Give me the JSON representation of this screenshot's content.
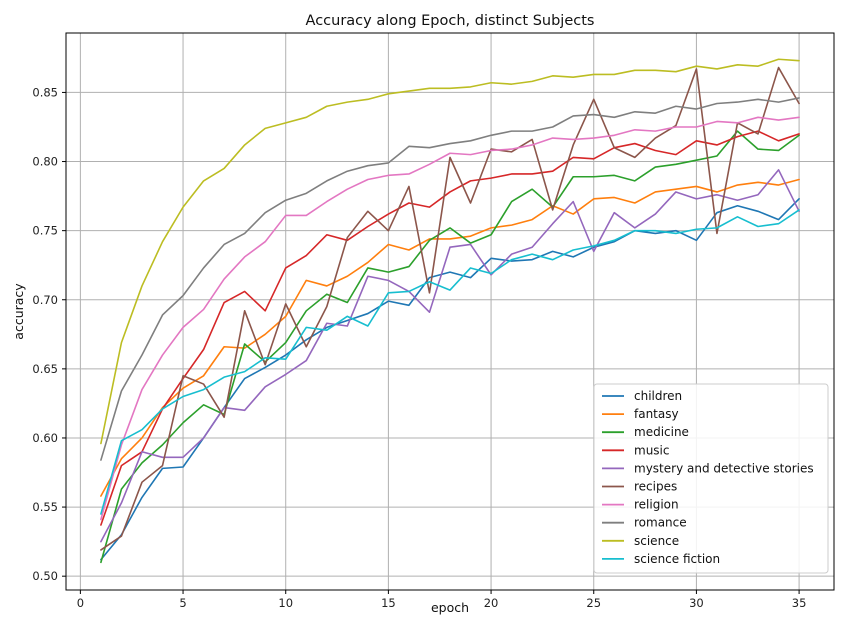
{
  "chart_data": {
    "type": "line",
    "title": "Accuracy along Epoch, distinct Subjects",
    "xlabel": "epoch",
    "ylabel": "accuracy",
    "xlim": [
      -0.7,
      36.7
    ],
    "ylim": [
      0.49,
      0.893
    ],
    "xticks": [
      0,
      5,
      10,
      15,
      20,
      25,
      30,
      35
    ],
    "yticks": [
      0.5,
      0.55,
      0.6,
      0.65,
      0.7,
      0.75,
      0.8,
      0.85
    ],
    "ytick_labels": [
      "0.50",
      "0.55",
      "0.60",
      "0.65",
      "0.70",
      "0.75",
      "0.80",
      "0.85"
    ],
    "grid": true,
    "legend_position": "lower-right",
    "x": [
      1,
      2,
      3,
      4,
      5,
      6,
      7,
      8,
      9,
      10,
      11,
      12,
      13,
      14,
      15,
      16,
      17,
      18,
      19,
      20,
      21,
      22,
      23,
      24,
      25,
      26,
      27,
      28,
      29,
      30,
      31,
      32,
      33,
      34,
      35
    ],
    "series": [
      {
        "name": "children",
        "color": "#1f77b4",
        "values": [
          0.512,
          0.53,
          0.557,
          0.578,
          0.579,
          0.6,
          0.622,
          0.643,
          0.651,
          0.66,
          0.671,
          0.68,
          0.685,
          0.69,
          0.699,
          0.696,
          0.716,
          0.72,
          0.716,
          0.73,
          0.728,
          0.729,
          0.735,
          0.731,
          0.738,
          0.742,
          0.75,
          0.748,
          0.75,
          0.743,
          0.763,
          0.768,
          0.764,
          0.758,
          0.773
        ]
      },
      {
        "name": "fantasy",
        "color": "#ff7f0e",
        "values": [
          0.558,
          0.585,
          0.6,
          0.622,
          0.636,
          0.645,
          0.666,
          0.665,
          0.675,
          0.688,
          0.714,
          0.71,
          0.717,
          0.727,
          0.74,
          0.736,
          0.744,
          0.744,
          0.746,
          0.752,
          0.754,
          0.758,
          0.768,
          0.762,
          0.773,
          0.774,
          0.77,
          0.778,
          0.78,
          0.782,
          0.778,
          0.783,
          0.785,
          0.783,
          0.787
        ]
      },
      {
        "name": "medicine",
        "color": "#2ca02c",
        "values": [
          0.51,
          0.563,
          0.582,
          0.595,
          0.611,
          0.624,
          0.617,
          0.668,
          0.655,
          0.669,
          0.692,
          0.704,
          0.698,
          0.723,
          0.72,
          0.724,
          0.743,
          0.752,
          0.741,
          0.747,
          0.771,
          0.78,
          0.767,
          0.789,
          0.789,
          0.79,
          0.786,
          0.796,
          0.798,
          0.801,
          0.804,
          0.822,
          0.809,
          0.808,
          0.819
        ]
      },
      {
        "name": "music",
        "color": "#d62728",
        "values": [
          0.537,
          0.58,
          0.59,
          0.621,
          0.643,
          0.664,
          0.698,
          0.706,
          0.692,
          0.723,
          0.732,
          0.747,
          0.743,
          0.753,
          0.762,
          0.77,
          0.767,
          0.778,
          0.786,
          0.788,
          0.791,
          0.791,
          0.793,
          0.803,
          0.802,
          0.81,
          0.813,
          0.808,
          0.805,
          0.815,
          0.812,
          0.818,
          0.822,
          0.815,
          0.82
        ]
      },
      {
        "name": "mystery and detective stories",
        "color": "#9467bd",
        "values": [
          0.525,
          0.553,
          0.59,
          0.586,
          0.586,
          0.6,
          0.622,
          0.62,
          0.637,
          0.646,
          0.656,
          0.683,
          0.681,
          0.717,
          0.714,
          0.706,
          0.691,
          0.738,
          0.74,
          0.718,
          0.733,
          0.738,
          0.755,
          0.771,
          0.735,
          0.763,
          0.752,
          0.762,
          0.778,
          0.773,
          0.776,
          0.772,
          0.776,
          0.794,
          0.764
        ]
      },
      {
        "name": "recipes",
        "color": "#8c564b",
        "values": [
          0.519,
          0.529,
          0.568,
          0.58,
          0.645,
          0.639,
          0.615,
          0.692,
          0.653,
          0.697,
          0.666,
          0.695,
          0.745,
          0.764,
          0.75,
          0.782,
          0.705,
          0.803,
          0.77,
          0.809,
          0.807,
          0.816,
          0.765,
          0.812,
          0.845,
          0.81,
          0.803,
          0.817,
          0.826,
          0.867,
          0.748,
          0.828,
          0.82,
          0.868,
          0.842
        ]
      },
      {
        "name": "religion",
        "color": "#e377c2",
        "values": [
          0.541,
          0.595,
          0.635,
          0.66,
          0.68,
          0.693,
          0.715,
          0.731,
          0.742,
          0.761,
          0.761,
          0.771,
          0.78,
          0.787,
          0.79,
          0.791,
          0.798,
          0.806,
          0.805,
          0.808,
          0.809,
          0.812,
          0.817,
          0.816,
          0.817,
          0.819,
          0.823,
          0.822,
          0.825,
          0.825,
          0.829,
          0.828,
          0.832,
          0.83,
          0.832
        ]
      },
      {
        "name": "romance",
        "color": "#7f7f7f",
        "values": [
          0.584,
          0.634,
          0.66,
          0.689,
          0.703,
          0.723,
          0.74,
          0.748,
          0.763,
          0.772,
          0.777,
          0.786,
          0.793,
          0.797,
          0.799,
          0.811,
          0.81,
          0.813,
          0.815,
          0.819,
          0.822,
          0.822,
          0.825,
          0.833,
          0.834,
          0.832,
          0.836,
          0.835,
          0.84,
          0.838,
          0.842,
          0.843,
          0.845,
          0.843,
          0.846
        ]
      },
      {
        "name": "science",
        "color": "#bcbd22",
        "values": [
          0.596,
          0.669,
          0.71,
          0.742,
          0.767,
          0.786,
          0.795,
          0.812,
          0.824,
          0.828,
          0.832,
          0.84,
          0.843,
          0.845,
          0.849,
          0.851,
          0.853,
          0.853,
          0.854,
          0.857,
          0.856,
          0.858,
          0.862,
          0.861,
          0.863,
          0.863,
          0.866,
          0.866,
          0.865,
          0.869,
          0.867,
          0.87,
          0.869,
          0.874,
          0.873
        ]
      },
      {
        "name": "science fiction",
        "color": "#17becf",
        "values": [
          0.545,
          0.598,
          0.606,
          0.621,
          0.63,
          0.635,
          0.644,
          0.648,
          0.658,
          0.657,
          0.68,
          0.678,
          0.688,
          0.681,
          0.705,
          0.706,
          0.713,
          0.707,
          0.723,
          0.719,
          0.729,
          0.733,
          0.729,
          0.736,
          0.739,
          0.743,
          0.75,
          0.75,
          0.748,
          0.751,
          0.752,
          0.76,
          0.753,
          0.755,
          0.765
        ]
      }
    ]
  }
}
